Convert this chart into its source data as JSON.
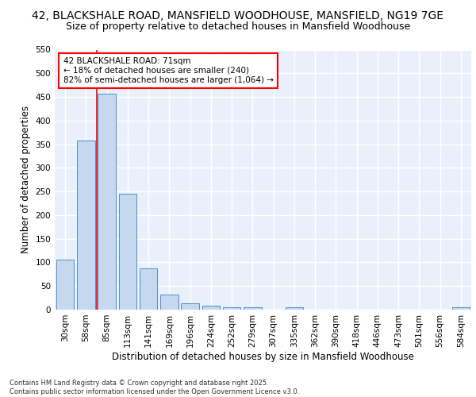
{
  "title_line1": "42, BLACKSHALE ROAD, MANSFIELD WOODHOUSE, MANSFIELD, NG19 7GE",
  "title_line2": "Size of property relative to detached houses in Mansfield Woodhouse",
  "xlabel": "Distribution of detached houses by size in Mansfield Woodhouse",
  "ylabel": "Number of detached properties",
  "footer": "Contains HM Land Registry data © Crown copyright and database right 2025.\nContains public sector information licensed under the Open Government Licence v3.0.",
  "categories": [
    "30sqm",
    "58sqm",
    "85sqm",
    "113sqm",
    "141sqm",
    "169sqm",
    "196sqm",
    "224sqm",
    "252sqm",
    "279sqm",
    "307sqm",
    "335sqm",
    "362sqm",
    "390sqm",
    "418sqm",
    "446sqm",
    "473sqm",
    "501sqm",
    "556sqm",
    "584sqm"
  ],
  "values": [
    105,
    357,
    456,
    245,
    88,
    32,
    13,
    8,
    5,
    5,
    0,
    5,
    0,
    0,
    0,
    0,
    0,
    0,
    0,
    5
  ],
  "bar_color": "#c5d8f0",
  "bar_edge_color": "#4a90c4",
  "red_line_x": 1.5,
  "annotation_text": "42 BLACKSHALE ROAD: 71sqm\n← 18% of detached houses are smaller (240)\n82% of semi-detached houses are larger (1,064) →",
  "ylim": [
    0,
    550
  ],
  "yticks": [
    0,
    50,
    100,
    150,
    200,
    250,
    300,
    350,
    400,
    450,
    500,
    550
  ],
  "background_color": "#eaf0fb",
  "grid_color": "#ffffff",
  "title_fontsize": 10,
  "subtitle_fontsize": 9,
  "axis_label_fontsize": 8.5,
  "tick_fontsize": 7.5,
  "footer_fontsize": 6
}
